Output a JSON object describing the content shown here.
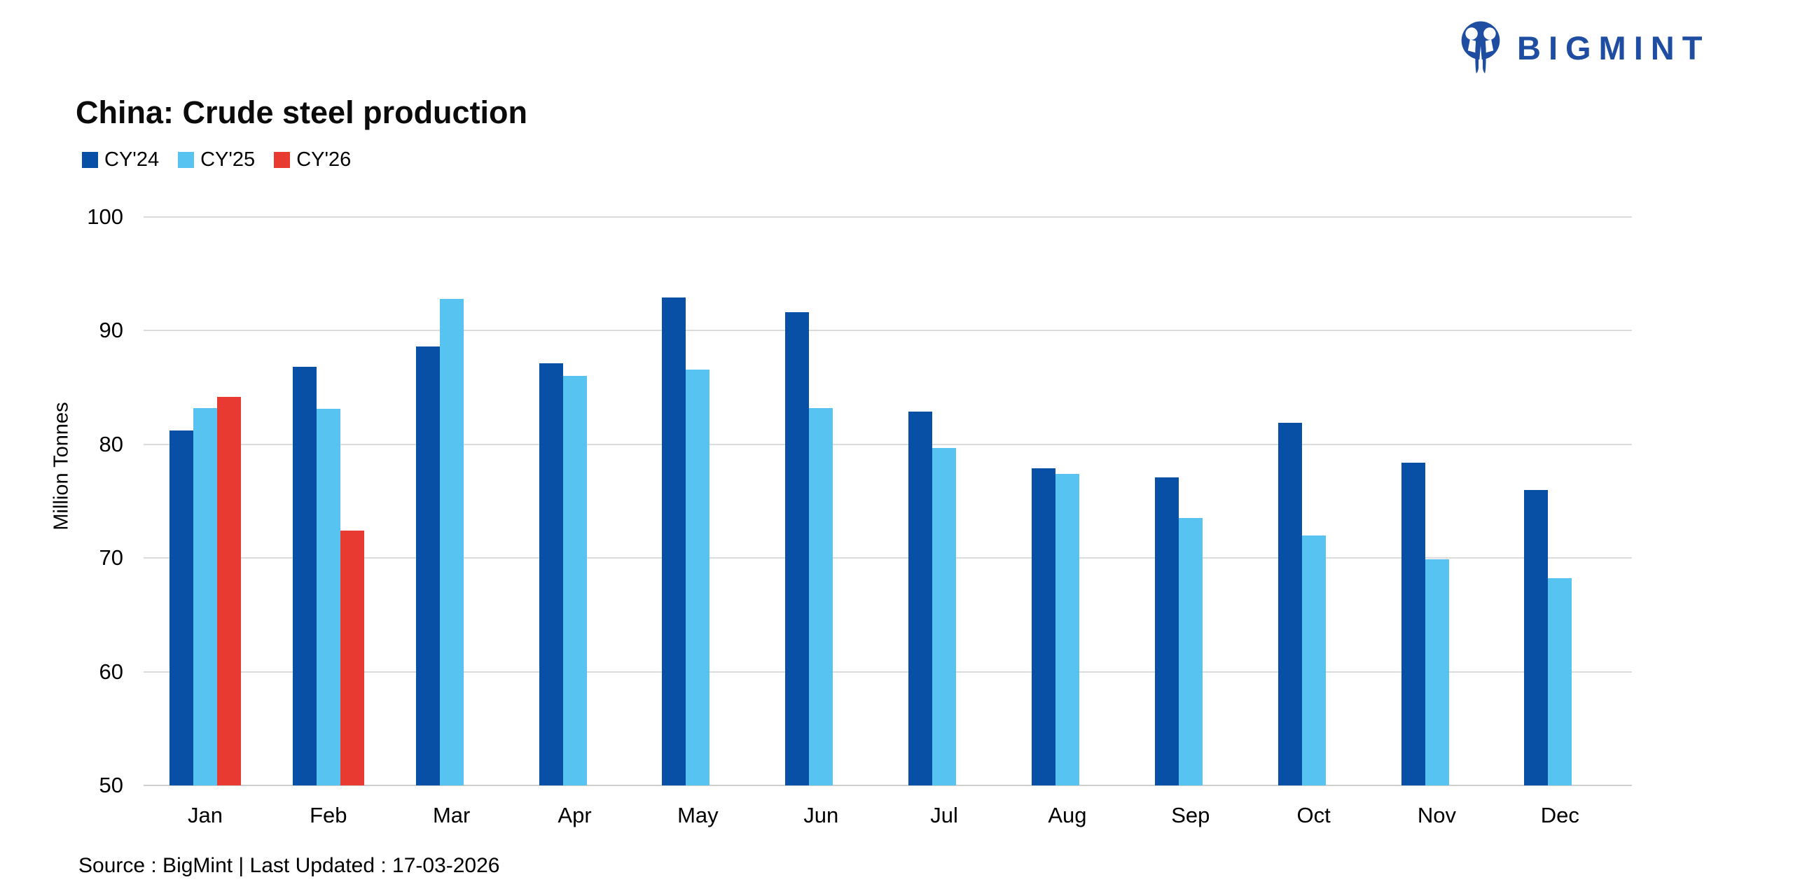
{
  "brand": {
    "name": "BIGMINT",
    "color": "#1E4DA1"
  },
  "header": {
    "title": "China: Crude steel production"
  },
  "footer": {
    "source_line": "Source : BigMint | Last Updated : 17-03-2026"
  },
  "chart_data": {
    "type": "bar",
    "title": "China: Crude steel production",
    "xlabel": "",
    "ylabel": "Million Tonnes",
    "ylim": [
      50,
      100
    ],
    "ytick_step": 10,
    "yticks": [
      50,
      60,
      70,
      80,
      90,
      100
    ],
    "grid": true,
    "legend_position": "top-left",
    "categories": [
      "Jan",
      "Feb",
      "Mar",
      "Apr",
      "May",
      "Jun",
      "Jul",
      "Aug",
      "Sep",
      "Oct",
      "Nov",
      "Dec"
    ],
    "series": [
      {
        "name": "CY'24",
        "color": "#0850A5",
        "values": [
          81.2,
          86.8,
          88.6,
          87.1,
          92.9,
          91.6,
          82.9,
          77.9,
          77.1,
          81.9,
          78.4,
          76.0
        ]
      },
      {
        "name": "CY'25",
        "color": "#57C3F1",
        "values": [
          83.2,
          83.1,
          92.8,
          86.0,
          86.6,
          83.2,
          79.7,
          77.4,
          73.5,
          72.0,
          69.9,
          68.2
        ]
      },
      {
        "name": "CY'26",
        "color": "#E93A31",
        "values": [
          84.2,
          72.4,
          null,
          null,
          null,
          null,
          null,
          null,
          null,
          null,
          null,
          null
        ]
      }
    ],
    "colors": {
      "gridline": "#dcdcdc",
      "text": "#000000"
    }
  }
}
